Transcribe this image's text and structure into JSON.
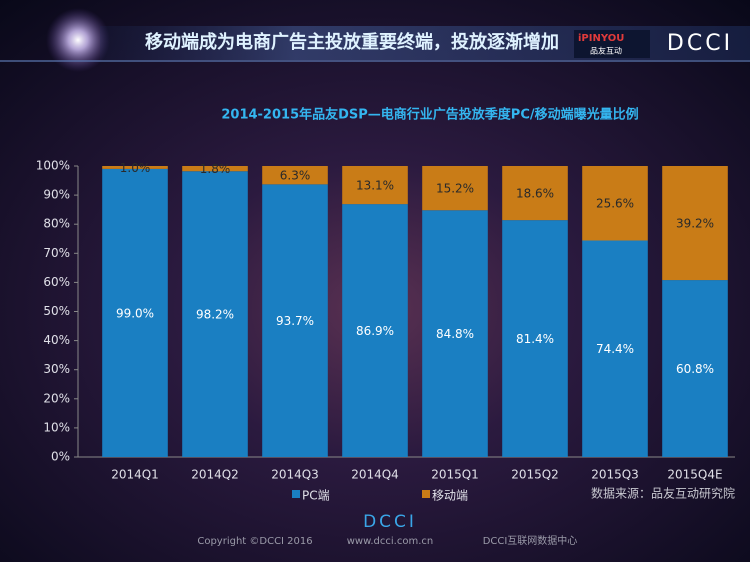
{
  "slide": {
    "headline": "移动端成为电商广告主投放重要终端，投放逐渐增加",
    "logo_brand": "iPINYOU",
    "logo_brand_cn": "品友互动",
    "logo_dcci": "DCCI",
    "source": "数据来源：品友互动研究院",
    "footer_logo": "DCCI",
    "copyright": "Copyright ©DCCI 2016",
    "website": "www.dcci.com.cn",
    "org": "DCCI互联网数据中心"
  },
  "chart_data": {
    "type": "stacked_bar",
    "title": "2014-2015年品友DSP—电商行业广告投放季度PC/移动端曝光量比例",
    "categories": [
      "2014Q1",
      "2014Q2",
      "2014Q3",
      "2014Q4",
      "2015Q1",
      "2015Q2",
      "2015Q3",
      "2015Q4E"
    ],
    "series": [
      {
        "name": "PC端",
        "color": "#1a7fc2",
        "values": [
          99.0,
          98.2,
          93.7,
          86.9,
          84.8,
          81.4,
          74.4,
          60.8
        ],
        "value_labels": [
          "99.0%",
          "98.2%",
          "93.7%",
          "86.9%",
          "84.8%",
          "81.4%",
          "74.4%",
          "60.8%"
        ]
      },
      {
        "name": "移动端",
        "color": "#c97c17",
        "values": [
          1.0,
          1.8,
          6.3,
          13.1,
          15.2,
          18.6,
          25.6,
          39.2
        ],
        "value_labels": [
          "1.0%",
          "1.8%",
          "6.3%",
          "13.1%",
          "15.2%",
          "18.6%",
          "25.6%",
          "39.2%"
        ]
      }
    ],
    "ylim": [
      0,
      100
    ],
    "yticks": [
      {
        "value": 0,
        "label": "0%"
      },
      {
        "value": 10,
        "label": "10%"
      },
      {
        "value": 20,
        "label": "20%"
      },
      {
        "value": 30,
        "label": "30%"
      },
      {
        "value": 40,
        "label": "40%"
      },
      {
        "value": 50,
        "label": "50%"
      },
      {
        "value": 60,
        "label": "60%"
      },
      {
        "value": 70,
        "label": "70%"
      },
      {
        "value": 80,
        "label": "80%"
      },
      {
        "value": 90,
        "label": "90%"
      },
      {
        "value": 100,
        "label": "100%"
      }
    ],
    "legend": "bottom"
  }
}
